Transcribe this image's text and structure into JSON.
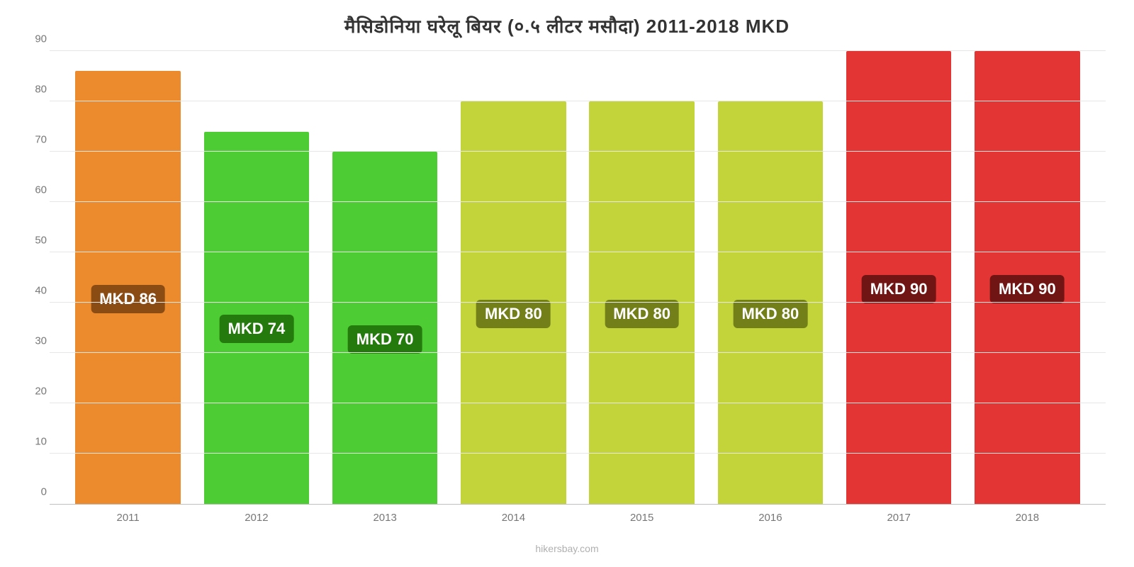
{
  "chart": {
    "type": "bar",
    "title": "मैसिडोनिया घरेलू बियर (०.५ लीटर मसौदा) 2011-2018 MKD",
    "title_fontsize": 26,
    "title_color": "#333333",
    "background_color": "#ffffff",
    "grid_color": "#e6e6e6",
    "axis_line_color": "#c0c0c0",
    "tick_label_color": "#777777",
    "tick_label_fontsize": 15,
    "ylim": [
      0,
      90
    ],
    "ytick_step": 10,
    "bar_width": 0.82,
    "categories": [
      "2011",
      "2012",
      "2013",
      "2014",
      "2015",
      "2016",
      "2017",
      "2018"
    ],
    "values": [
      86,
      74,
      70,
      80,
      80,
      80,
      90,
      90
    ],
    "value_labels": [
      "MKD 86",
      "MKD 74",
      "MKD 70",
      "MKD 80",
      "MKD 80",
      "MKD 80",
      "MKD 90",
      "MKD 90"
    ],
    "bar_colors": [
      "#ec8b2e",
      "#4dcd33",
      "#4dcd33",
      "#c2d43a",
      "#c2d43a",
      "#c2d43a",
      "#e43535",
      "#e43535"
    ],
    "badge_bg_colors": [
      "#8b4c13",
      "#257a0e",
      "#257a0e",
      "#73801a",
      "#73801a",
      "#73801a",
      "#711414",
      "#711414"
    ],
    "badge_text_color": "#ffffff",
    "badge_fontsize": 22,
    "footer": "hikersbay.com",
    "footer_color": "#b0b0b0"
  }
}
